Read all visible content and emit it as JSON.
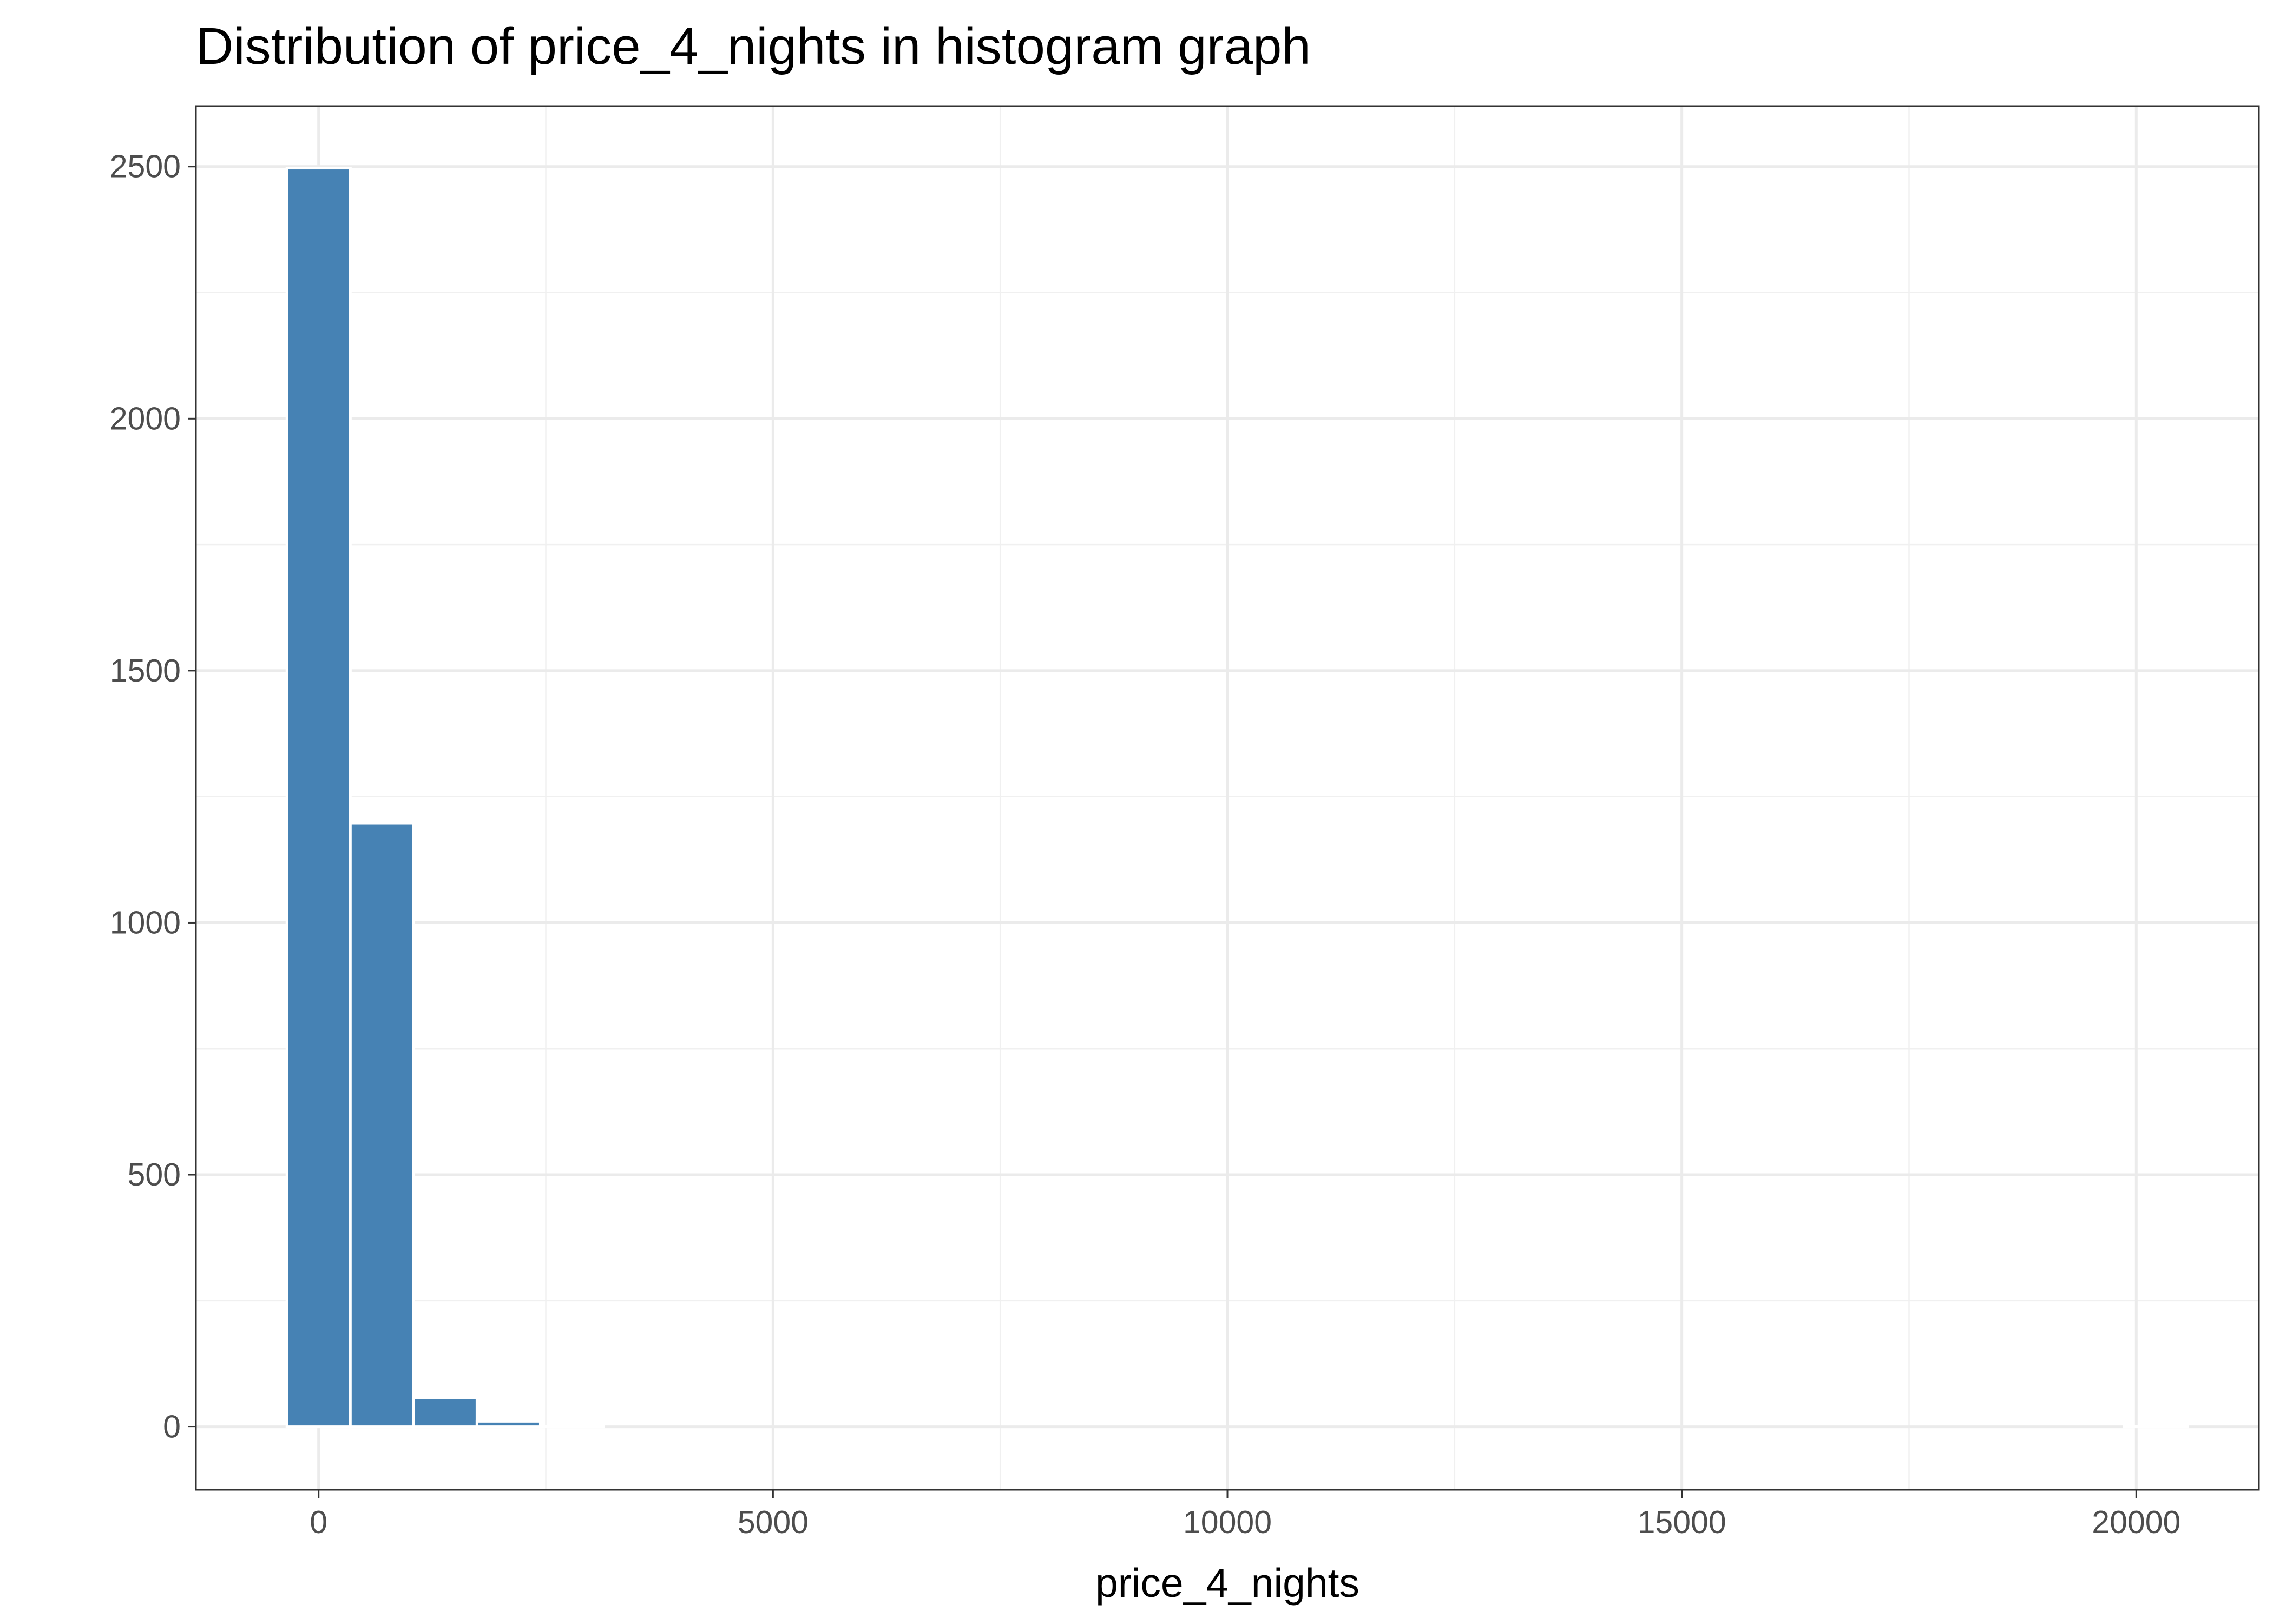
{
  "chart_data": {
    "type": "bar",
    "title": "Distribution of price_4_nights in histogram graph",
    "xlabel": "price_4_nights",
    "ylabel": "",
    "xlim": [
      -1350,
      21350
    ],
    "ylim": [
      -125,
      2620
    ],
    "x_ticks": [
      0,
      5000,
      10000,
      15000,
      20000
    ],
    "x_tick_labels": [
      "0",
      "5000",
      "10000",
      "15000",
      "20000"
    ],
    "y_ticks": [
      0,
      500,
      1000,
      1500,
      2000,
      2500
    ],
    "y_tick_labels": [
      "0",
      "500",
      "1000",
      "1500",
      "2000",
      "2500"
    ],
    "bin_width": 697,
    "bins": [
      {
        "x0": -348,
        "x1": 349,
        "count": 2497
      },
      {
        "x0": 349,
        "x1": 1046,
        "count": 1197
      },
      {
        "x0": 1046,
        "x1": 1743,
        "count": 58
      },
      {
        "x0": 1743,
        "x1": 2440,
        "count": 11
      },
      {
        "x0": 2440,
        "x1": 3137,
        "count": 1
      },
      {
        "x0": 3137,
        "x1": 3834,
        "count": 0
      },
      {
        "x0": 19868,
        "x1": 20565,
        "count": 1
      }
    ],
    "bar_color": "#4682b4",
    "grid": true,
    "theme": "bw"
  }
}
